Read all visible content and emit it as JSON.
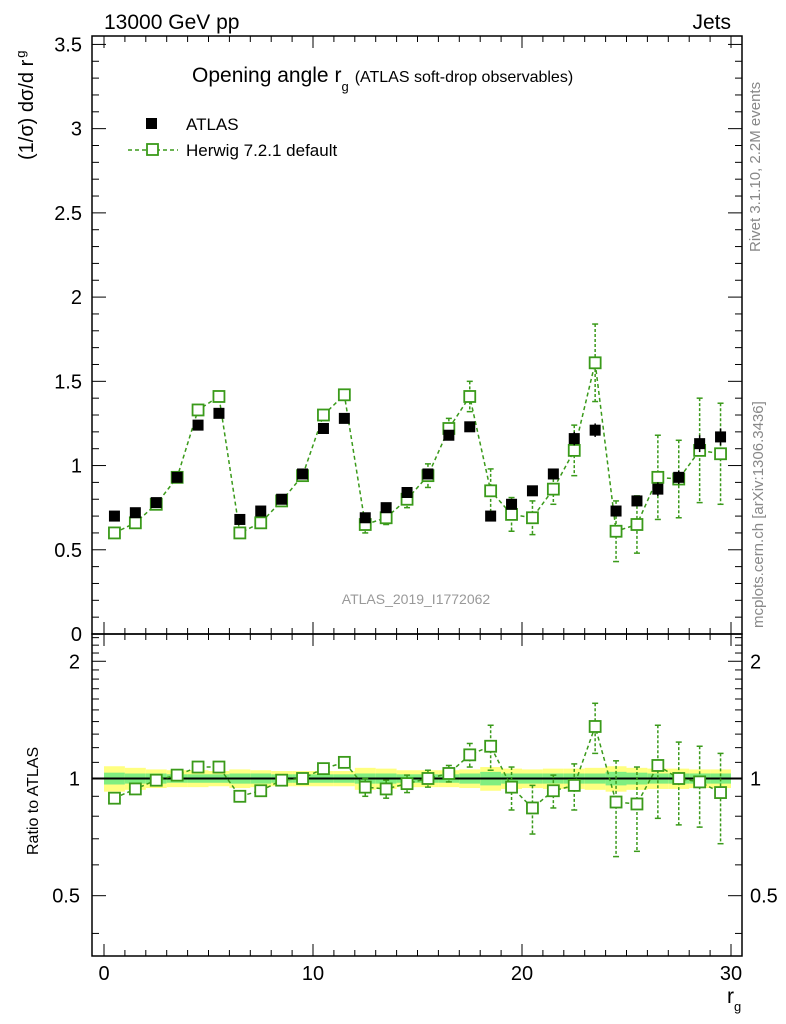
{
  "header": {
    "left": "13000 GeV pp",
    "right": "Jets"
  },
  "title": {
    "main": "Opening angle r",
    "sub": "g",
    "extra": "(ATLAS soft-drop observables)"
  },
  "ylabel_main": {
    "prefix": "(1/σ) dσ/d r",
    "sub": "g"
  },
  "ylabel_ratio": "Ratio to ATLAS",
  "xlabel": {
    "main": "r",
    "sub": "g"
  },
  "side_text": {
    "rivet": "Rivet 3.1.10,  2.2M events",
    "mcplots": "mcplots.cern.ch [arXiv:1306.3436]"
  },
  "watermark": "ATLAS_2019_I1772062",
  "legend": {
    "data_label": "ATLAS",
    "mc_label": "Herwig 7.2.1 default"
  },
  "colors": {
    "data": "#000000",
    "mc": "#3a9a1a",
    "band_outer": "#ffff80",
    "band_inner": "#80ee80"
  },
  "chart_data": {
    "type": "scatter",
    "title": "Opening angle r_g (ATLAS soft-drop observables)",
    "xlabel": "r_g",
    "ylabel": "(1/σ) dσ/d r_g",
    "xlim": [
      -0.5,
      30.5
    ],
    "ylim": [
      0,
      3.55
    ],
    "ratio_ylim": [
      0.35,
      2.35
    ],
    "x_ticks": [
      0,
      10,
      20,
      30
    ],
    "y_ticks": [
      0,
      0.5,
      1,
      1.5,
      2,
      2.5,
      3,
      3.5
    ],
    "y_tick_labels": [
      "0",
      "0.5",
      "1",
      "1.5",
      "2",
      "2.5",
      "3",
      "3.5"
    ],
    "ratio_ticks": [
      0.5,
      1,
      2
    ],
    "ratio_tick_labels": [
      "0.5",
      "1",
      "2"
    ],
    "x": [
      0.5,
      1.5,
      2.5,
      3.5,
      4.5,
      5.5,
      6.5,
      7.5,
      8.5,
      9.5,
      10.5,
      11.5,
      12.5,
      13.5,
      14.5,
      15.5,
      16.5,
      17.5,
      18.5,
      19.5,
      20.5,
      21.5,
      22.5,
      23.5,
      24.5,
      25.5,
      26.5,
      27.5,
      28.5,
      29.5
    ],
    "series": [
      {
        "name": "ATLAS",
        "values": [
          0.7,
          0.72,
          0.78,
          0.93,
          1.24,
          1.31,
          0.68,
          0.73,
          0.8,
          0.95,
          1.22,
          1.28,
          0.69,
          0.75,
          0.84,
          0.95,
          1.18,
          1.23,
          0.7,
          0.77,
          0.85,
          0.95,
          1.16,
          1.21,
          0.73,
          0.79,
          0.86,
          0.93,
          1.13,
          1.17
        ],
        "errors": [
          0.02,
          0.02,
          0.02,
          0.03,
          0.03,
          0.03,
          0.02,
          0.02,
          0.02,
          0.03,
          0.03,
          0.03,
          0.02,
          0.02,
          0.02,
          0.03,
          0.03,
          0.03,
          0.02,
          0.02,
          0.03,
          0.03,
          0.04,
          0.04,
          0.03,
          0.03,
          0.04,
          0.04,
          0.05,
          0.05
        ],
        "band_inner": [
          0.035,
          0.03,
          0.03,
          0.025,
          0.025,
          0.025,
          0.03,
          0.03,
          0.025,
          0.025,
          0.025,
          0.025,
          0.03,
          0.03,
          0.025,
          0.025,
          0.025,
          0.03,
          0.04,
          0.03,
          0.03,
          0.03,
          0.03,
          0.03,
          0.04,
          0.035,
          0.03,
          0.03,
          0.03,
          0.03
        ],
        "band_outer": [
          0.075,
          0.065,
          0.055,
          0.05,
          0.05,
          0.045,
          0.055,
          0.05,
          0.045,
          0.045,
          0.045,
          0.045,
          0.065,
          0.06,
          0.05,
          0.05,
          0.05,
          0.055,
          0.07,
          0.06,
          0.055,
          0.06,
          0.06,
          0.065,
          0.075,
          0.065,
          0.06,
          0.06,
          0.055,
          0.055
        ]
      },
      {
        "name": "Herwig 7.2.1 default",
        "values": [
          0.6,
          0.66,
          0.77,
          0.93,
          1.33,
          1.41,
          0.6,
          0.66,
          0.79,
          0.94,
          1.3,
          1.42,
          0.65,
          0.69,
          0.8,
          0.94,
          1.22,
          1.41,
          0.85,
          0.71,
          0.69,
          0.86,
          1.09,
          1.61,
          0.61,
          0.65,
          0.93,
          0.92,
          1.09,
          1.07
        ],
        "errors": [
          0.01,
          0.02,
          0.02,
          0.03,
          0.03,
          0.03,
          0.02,
          0.02,
          0.02,
          0.02,
          0.03,
          0.03,
          0.05,
          0.04,
          0.05,
          0.07,
          0.06,
          0.09,
          0.13,
          0.1,
          0.1,
          0.09,
          0.15,
          0.23,
          0.18,
          0.17,
          0.25,
          0.23,
          0.31,
          0.3
        ]
      }
    ],
    "ratio": {
      "values": [
        0.89,
        0.94,
        0.99,
        1.02,
        1.07,
        1.07,
        0.9,
        0.93,
        0.99,
        1.0,
        1.06,
        1.1,
        0.95,
        0.94,
        0.97,
        1.0,
        1.03,
        1.15,
        1.21,
        0.95,
        0.84,
        0.93,
        0.96,
        1.36,
        0.87,
        0.86,
        1.08,
        1.0,
        0.98,
        0.92
      ],
      "errors": [
        0.01,
        0.02,
        0.02,
        0.03,
        0.03,
        0.02,
        0.02,
        0.02,
        0.02,
        0.02,
        0.02,
        0.02,
        0.05,
        0.05,
        0.05,
        0.05,
        0.05,
        0.08,
        0.16,
        0.12,
        0.12,
        0.09,
        0.13,
        0.2,
        0.24,
        0.21,
        0.29,
        0.24,
        0.23,
        0.24
      ]
    }
  }
}
